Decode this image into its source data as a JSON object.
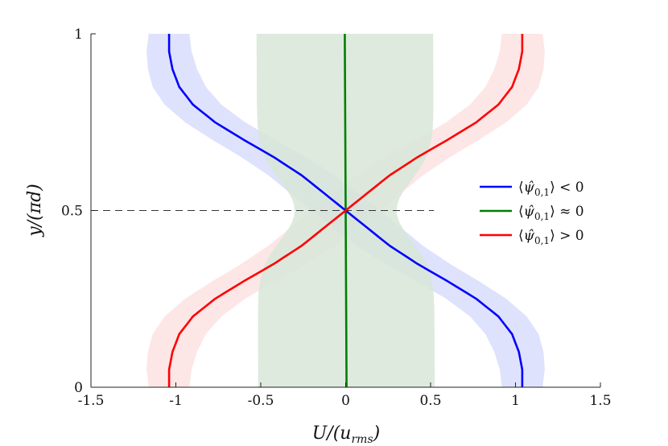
{
  "chart_data": {
    "type": "line",
    "title": "",
    "xlabel": "U/(u_rms)",
    "ylabel": "y/(πd)",
    "xlim": [
      -1.5,
      1.5
    ],
    "ylim": [
      0,
      1
    ],
    "x_ticks": [
      "-1.5",
      "-1",
      "-0.5",
      "0",
      "0.5",
      "1",
      "1.5"
    ],
    "y_ticks": [
      "0",
      "0.5",
      "1"
    ],
    "grid": false,
    "legend_position": "right",
    "reference_line": {
      "y": 0.5,
      "x_from": -1.5,
      "x_to": 0.52,
      "style": "dashed"
    },
    "series": [
      {
        "name": "⟨ψ̂₀,₁⟩ < 0",
        "legend_rel": "< 0",
        "color": "#0000ff",
        "band_color": "#c9cffa",
        "y": [
          0,
          0.05,
          0.1,
          0.15,
          0.2,
          0.25,
          0.3,
          0.35,
          0.4,
          0.45,
          0.5,
          0.55,
          0.6,
          0.65,
          0.7,
          0.75,
          0.8,
          0.85,
          0.9,
          0.95,
          1.0
        ],
        "x": [
          1.04,
          1.04,
          1.02,
          0.98,
          0.9,
          0.77,
          0.6,
          0.42,
          0.26,
          0.13,
          0.0,
          -0.13,
          -0.26,
          -0.42,
          -0.6,
          -0.77,
          -0.9,
          -0.98,
          -1.02,
          -1.04,
          -1.04
        ]
      },
      {
        "name": "⟨ψ̂₀,₁⟩ ≈ 0",
        "legend_rel": "≈ 0",
        "color": "#007f00",
        "band_color": "#d8e6d8",
        "y": [
          0,
          0.5,
          1.0
        ],
        "x": [
          0.005,
          0.0,
          -0.005
        ]
      },
      {
        "name": "⟨ψ̂₀,₁⟩ > 0",
        "legend_rel": "> 0",
        "color": "#ff0000",
        "band_color": "#fbd6d6",
        "y": [
          0,
          0.05,
          0.1,
          0.15,
          0.2,
          0.25,
          0.3,
          0.35,
          0.4,
          0.45,
          0.5,
          0.55,
          0.6,
          0.65,
          0.7,
          0.75,
          0.8,
          0.85,
          0.9,
          0.95,
          1.0
        ],
        "x": [
          -1.04,
          -1.04,
          -1.02,
          -0.98,
          -0.9,
          -0.77,
          -0.6,
          -0.42,
          -0.26,
          -0.13,
          0.0,
          0.13,
          0.26,
          0.42,
          0.6,
          0.77,
          0.9,
          0.98,
          1.02,
          1.04,
          1.04
        ]
      }
    ]
  }
}
